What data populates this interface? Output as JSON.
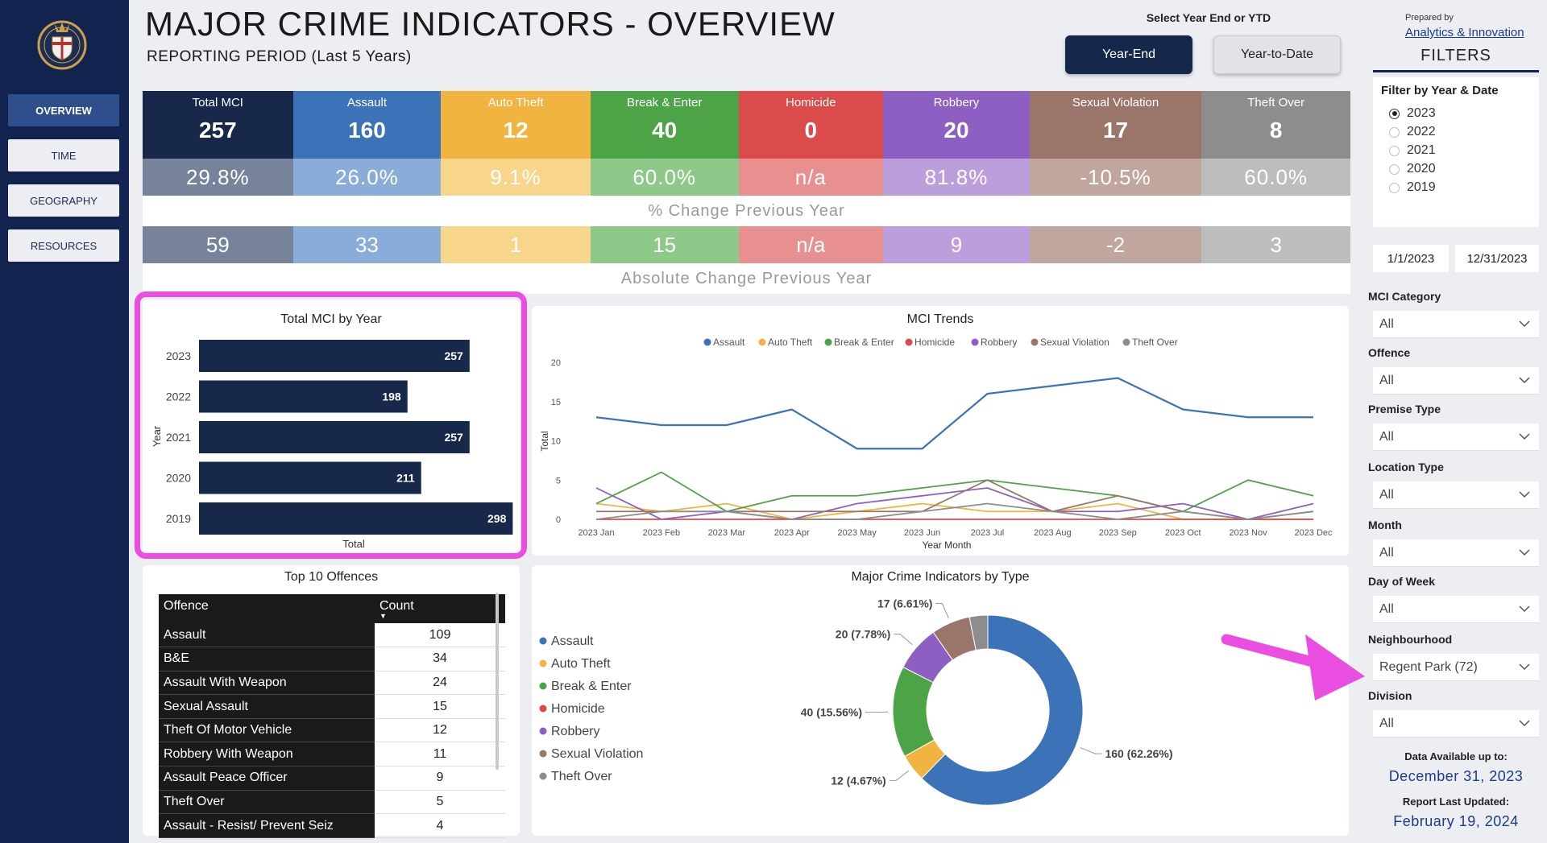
{
  "header": {
    "title": "MAJOR CRIME INDICATORS - OVERVIEW",
    "subtitle": "REPORTING PERIOD (Last 5 Years)",
    "select_label": "Select Year End or YTD",
    "btn_year_end": "Year-End",
    "btn_ytd": "Year-to-Date"
  },
  "sidebar": {
    "items": [
      {
        "label": "OVERVIEW",
        "active": true
      },
      {
        "label": "TIME"
      },
      {
        "label": "GEOGRAPHY"
      },
      {
        "label": "RESOURCES"
      }
    ]
  },
  "kpis": [
    {
      "name": "Total MCI",
      "value": "257",
      "pct": "29.8%",
      "abs": "59",
      "color": "#17284a",
      "pct_color": "#77839b",
      "abs_color": "#77839b"
    },
    {
      "name": "Assault",
      "value": "160",
      "pct": "26.0%",
      "abs": "33",
      "color": "#3b72b8",
      "pct_color": "#89acd8",
      "abs_color": "#89acd8"
    },
    {
      "name": "Auto Theft",
      "value": "12",
      "pct": "9.1%",
      "abs": "1",
      "color": "#f2b440",
      "pct_color": "#f7d68b",
      "abs_color": "#f7d68b"
    },
    {
      "name": "Break & Enter",
      "value": "40",
      "pct": "60.0%",
      "abs": "15",
      "color": "#4ca447",
      "pct_color": "#8fc98a",
      "abs_color": "#8fc98a"
    },
    {
      "name": "Homicide",
      "value": "0",
      "pct": "n/a",
      "abs": "n/a",
      "color": "#db4b4b",
      "pct_color": "#e89090",
      "abs_color": "#e89090"
    },
    {
      "name": "Robbery",
      "value": "20",
      "pct": "81.8%",
      "abs": "9",
      "color": "#8e5fc2",
      "pct_color": "#bb9fdc",
      "abs_color": "#bb9fdc"
    },
    {
      "name": "Sexual Violation",
      "value": "17",
      "pct": "-10.5%",
      "abs": "-2",
      "color": "#9a7569",
      "pct_color": "#c1a69d",
      "abs_color": "#c1a69d"
    },
    {
      "name": "Theft Over",
      "value": "8",
      "pct": "60.0%",
      "abs": "3",
      "color": "#8d8d8d",
      "pct_color": "#bdbdbd",
      "abs_color": "#bdbdbd"
    }
  ],
  "kpi_captions": {
    "pct": "% Change Previous Year",
    "abs": "Absolute Change Previous Year"
  },
  "total_by_year": {
    "title": "Total MCI by Year",
    "ylabel": "Year",
    "xlabel": "Total"
  },
  "trends": {
    "title": "MCI Trends",
    "ylabel": "Total",
    "xlabel": "Year Month"
  },
  "top_offences": {
    "title": "Top 10 Offences",
    "col_offence": "Offence",
    "col_count": "Count",
    "rows": [
      {
        "offence": "Assault",
        "count": "109"
      },
      {
        "offence": "B&E",
        "count": "34"
      },
      {
        "offence": "Assault With Weapon",
        "count": "24"
      },
      {
        "offence": "Sexual Assault",
        "count": "15"
      },
      {
        "offence": "Theft Of Motor Vehicle",
        "count": "12"
      },
      {
        "offence": "Robbery With Weapon",
        "count": "11"
      },
      {
        "offence": "Assault Peace Officer",
        "count": "9"
      },
      {
        "offence": "Theft Over",
        "count": "5"
      },
      {
        "offence": "Assault - Resist/ Prevent Seiz",
        "count": "4"
      }
    ]
  },
  "by_type": {
    "title": "Major Crime Indicators by Type"
  },
  "chart_data": [
    {
      "type": "bar",
      "title": "Total MCI by Year",
      "xlabel": "Total",
      "ylabel": "Year",
      "categories": [
        "2023",
        "2022",
        "2021",
        "2020",
        "2019"
      ],
      "values": [
        257,
        198,
        257,
        211,
        298
      ],
      "color": "#17284a"
    },
    {
      "type": "line",
      "title": "MCI Trends",
      "xlabel": "Year Month",
      "ylabel": "Total",
      "ylim": [
        0,
        20
      ],
      "yticks": [
        0,
        5,
        10,
        15,
        20
      ],
      "x": [
        "2023 Jan",
        "2023 Feb",
        "2023 Mar",
        "2023 Apr",
        "2023 May",
        "2023 Jun",
        "2023 Jul",
        "2023 Aug",
        "2023 Sep",
        "2023 Oct",
        "2023 Nov",
        "2023 Dec"
      ],
      "legend": "top",
      "series": [
        {
          "name": "Assault",
          "color": "#3b72b8",
          "values": [
            13,
            12,
            12,
            14,
            9,
            9,
            16,
            17,
            18,
            14,
            13,
            13
          ]
        },
        {
          "name": "Auto Theft",
          "color": "#f2b440",
          "values": [
            2,
            1,
            2,
            0,
            1,
            2,
            1,
            1,
            2,
            0,
            0,
            0
          ]
        },
        {
          "name": "Break & Enter",
          "color": "#4ca447",
          "values": [
            2,
            6,
            1,
            3,
            3,
            4,
            5,
            4,
            3,
            1,
            5,
            3
          ]
        },
        {
          "name": "Homicide",
          "color": "#db4b4b",
          "values": [
            0,
            0,
            0,
            0,
            0,
            0,
            0,
            0,
            0,
            0,
            0,
            0
          ]
        },
        {
          "name": "Robbery",
          "color": "#8e5fc2",
          "values": [
            4,
            0,
            1,
            0,
            2,
            3,
            4,
            1,
            1,
            2,
            0,
            2
          ]
        },
        {
          "name": "Sexual Violation",
          "color": "#9a7569",
          "values": [
            1,
            1,
            1,
            1,
            1,
            1,
            5,
            1,
            3,
            1,
            0,
            1
          ]
        },
        {
          "name": "Theft Over",
          "color": "#8d8d8d",
          "values": [
            0,
            1,
            1,
            0,
            0,
            1,
            2,
            1,
            0,
            1,
            0,
            1
          ]
        }
      ]
    },
    {
      "type": "pie",
      "title": "Major Crime Indicators by Type",
      "categories": [
        "Assault",
        "Auto Theft",
        "Break & Enter",
        "Homicide",
        "Robbery",
        "Sexual Violation",
        "Theft Over"
      ],
      "values": [
        160,
        12,
        40,
        0,
        20,
        17,
        8
      ],
      "labels": [
        "160 (62.26%)",
        "12 (4.67%)",
        "40 (15.56%)",
        "",
        "20 (7.78%)",
        "17 (6.61%)",
        ""
      ],
      "colors": [
        "#3b72b8",
        "#f2b440",
        "#4ca447",
        "#db4b4b",
        "#8e5fc2",
        "#9a7569",
        "#8d8d8d"
      ]
    }
  ],
  "filters": {
    "prepared_by": "Prepared by",
    "prepared_link": "Analytics & Innovation",
    "title": "FILTERS",
    "year_title": "Filter by Year & Date",
    "years": [
      {
        "label": "2023",
        "selected": true
      },
      {
        "label": "2022"
      },
      {
        "label": "2021"
      },
      {
        "label": "2020"
      },
      {
        "label": "2019"
      }
    ],
    "date_from": "1/1/2023",
    "date_to": "12/31/2023",
    "dropdowns": [
      {
        "label": "MCI Category",
        "value": "All"
      },
      {
        "label": "Offence",
        "value": "All"
      },
      {
        "label": "Premise Type",
        "value": "All"
      },
      {
        "label": "Location Type",
        "value": "All"
      },
      {
        "label": "Month",
        "value": "All"
      },
      {
        "label": "Day of Week",
        "value": "All"
      },
      {
        "label": "Neighbourhood",
        "value": "Regent Park (72)"
      },
      {
        "label": "Division",
        "value": "All"
      }
    ],
    "data_available_label": "Data Available up to:",
    "data_available_value": "December 31, 2023",
    "last_updated_label": "Report Last Updated:",
    "last_updated_value": "February 19, 2024"
  }
}
